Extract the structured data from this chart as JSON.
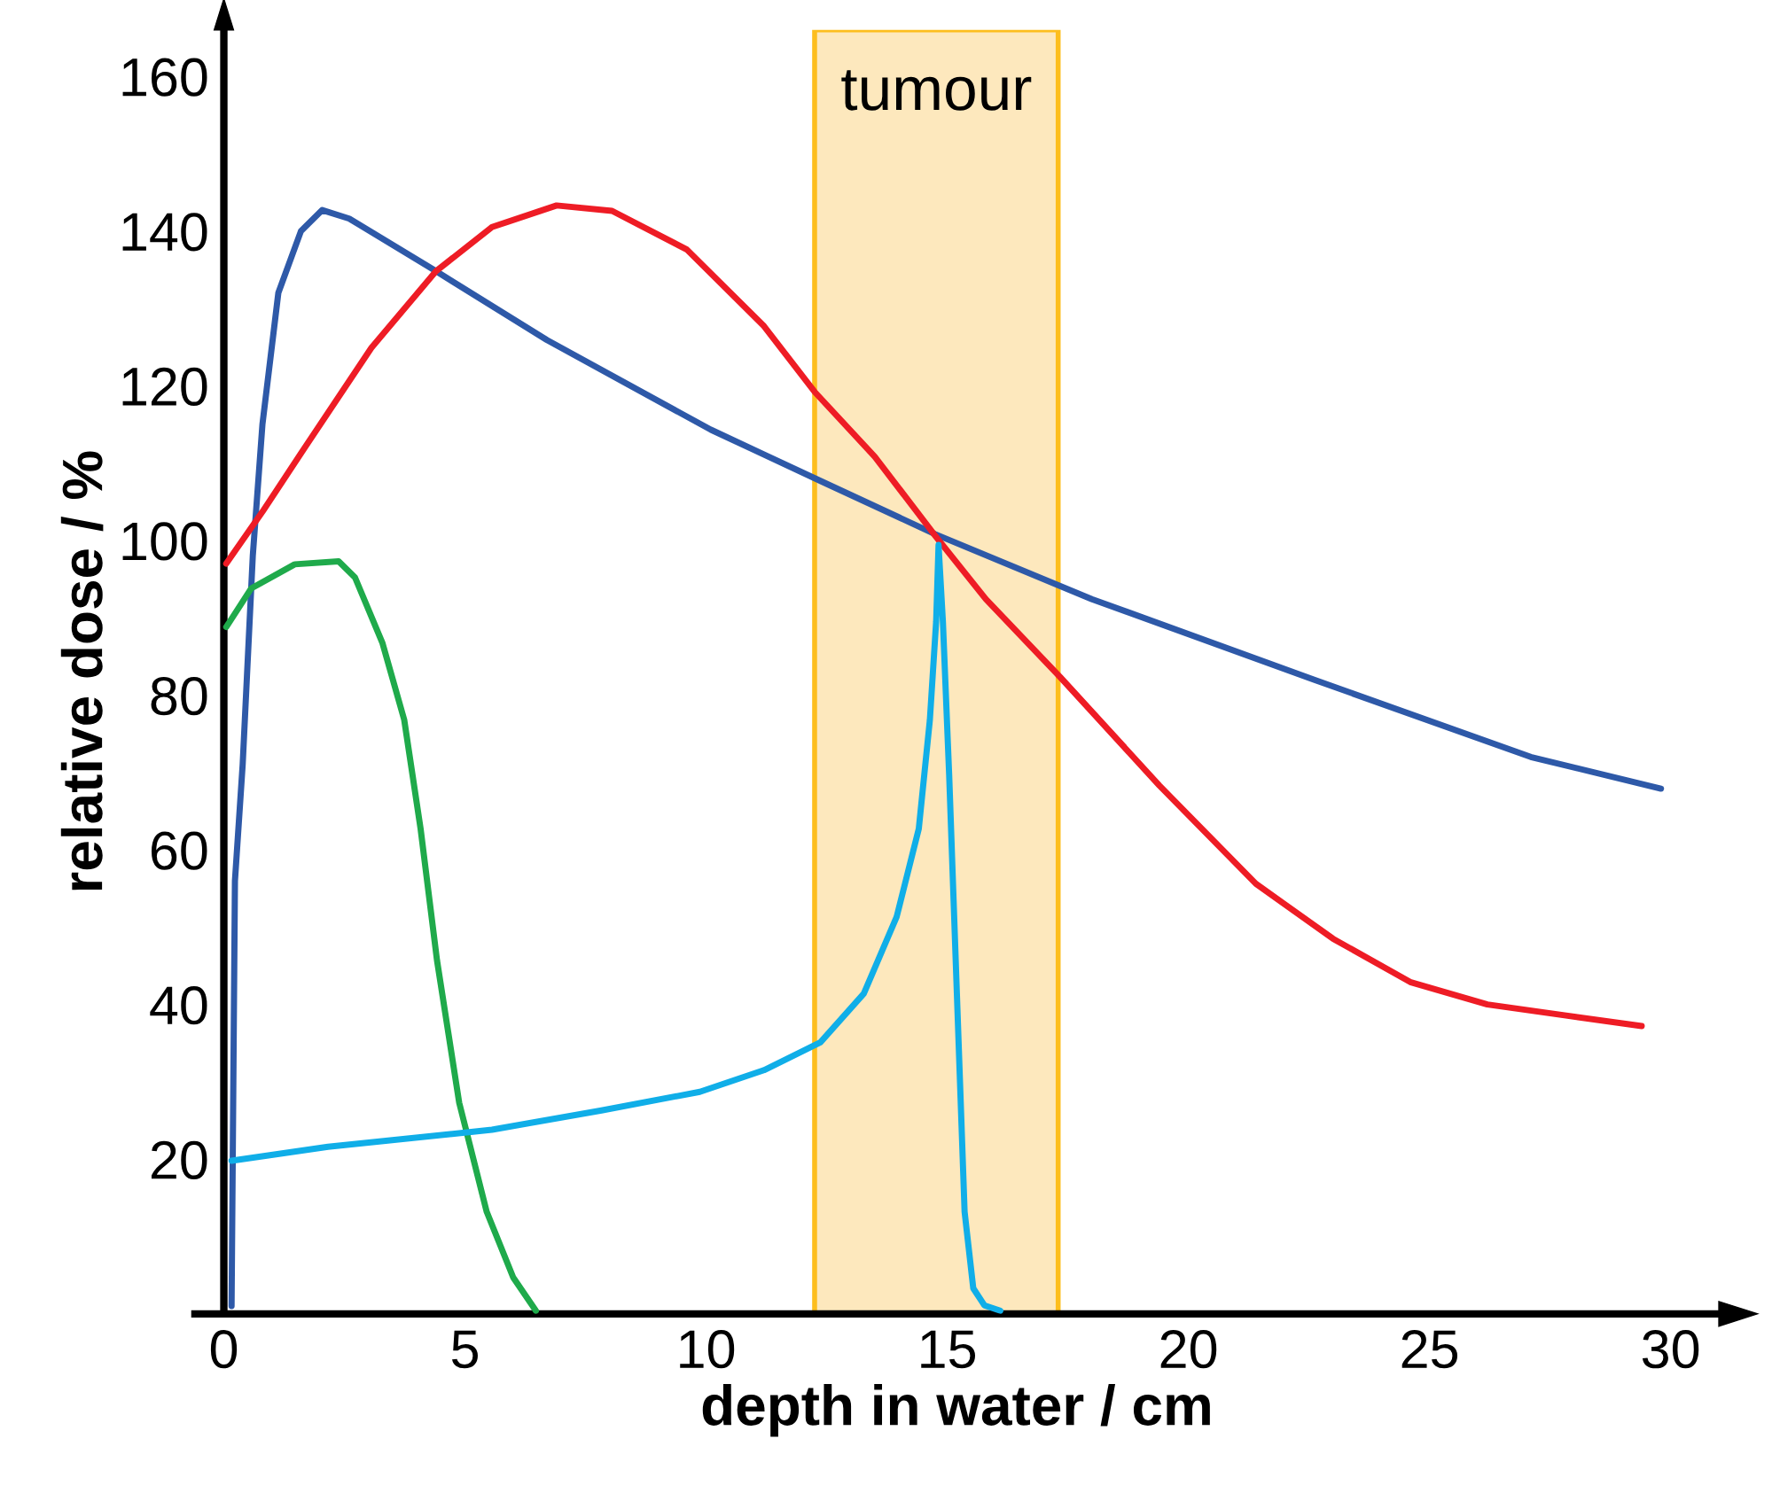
{
  "chart_data": {
    "type": "line",
    "xlabel": "depth in water / cm",
    "ylabel": "relative dose / %",
    "xlim": [
      -0.6,
      31
    ],
    "ylim": [
      0,
      166
    ],
    "xticks": [
      0,
      5,
      10,
      15,
      20,
      25,
      30
    ],
    "yticks": [
      20,
      40,
      60,
      80,
      100,
      120,
      140,
      160
    ],
    "grid": false,
    "marker": "none",
    "line_style": "solid",
    "bands": [
      {
        "axis": "x",
        "from": 12.25,
        "to": 17.3,
        "label": "tumour",
        "color": "#fde8bd"
      }
    ],
    "series": [
      {
        "color": "#2e59a8",
        "x": [
          0.16,
          0.23,
          0.39,
          0.6,
          0.8,
          1.13,
          1.6,
          2.04,
          2.6,
          4.4,
          6.7,
          10.1,
          12.4,
          14.75,
          18.0,
          22.6,
          27.1,
          29.8
        ],
        "values": [
          1,
          56,
          71,
          98,
          115,
          132,
          140,
          142.7,
          141.6,
          134.8,
          125.9,
          114.3,
          107.6,
          100.8,
          92.4,
          82,
          72,
          67.9
        ]
      },
      {
        "color": "#ee1c25",
        "x": [
          0.05,
          0.8,
          1.7,
          3.06,
          4.4,
          5.56,
          6.9,
          8.05,
          9.6,
          11.2,
          12.25,
          13.5,
          14.75,
          15.8,
          17.36,
          19.4,
          21.4,
          23.0,
          24.6,
          26.2,
          27.8,
          29.4
        ],
        "values": [
          97,
          103.7,
          112.2,
          124.9,
          134.8,
          140.5,
          143.3,
          142.6,
          137.6,
          127.7,
          119.2,
          110.8,
          100.6,
          92.4,
          82.2,
          68.3,
          55.6,
          48.5,
          42.9,
          40.0,
          38.6,
          37.2
        ]
      },
      {
        "color": "#1faa4b",
        "x": [
          0.05,
          0.57,
          1.47,
          2.38,
          2.72,
          3.29,
          3.74,
          4.08,
          4.42,
          4.88,
          5.45,
          6.0,
          6.47
        ],
        "values": [
          88.8,
          93.8,
          96.9,
          97.3,
          95.2,
          86.7,
          76.8,
          62.7,
          45.7,
          27.3,
          13.2,
          4.7,
          0.4
        ]
      },
      {
        "color": "#10aee8",
        "x": [
          0.16,
          2.16,
          5.56,
          7.83,
          9.87,
          11.2,
          12.37,
          13.27,
          13.95,
          14.41,
          14.64,
          14.77,
          14.82,
          14.91,
          15.04,
          15.2,
          15.36,
          15.54,
          15.77,
          16.1
        ],
        "values": [
          19.8,
          21.6,
          23.8,
          26.3,
          28.7,
          31.5,
          35.1,
          41.4,
          51.3,
          62.7,
          76.8,
          89.5,
          99.4,
          89.5,
          69.7,
          41.4,
          13.2,
          3.3,
          1.1,
          0.4
        ]
      }
    ]
  }
}
